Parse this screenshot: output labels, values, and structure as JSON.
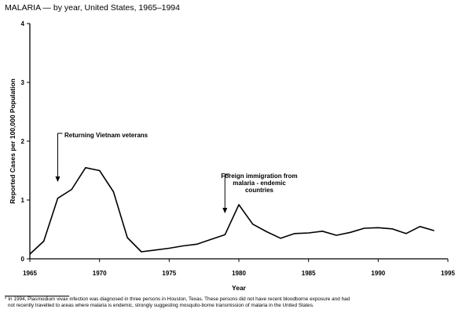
{
  "title": "MALARIA — by year, United States, 1965–1994",
  "footnote": {
    "marker": "*",
    "line1": "In 1994, Plasmodium vivax infection was diagnosed in three persons in Houston, Texas. These persons did not have recent bloodborne exposure and had",
    "line2": "not recently travelled to areas where malaria is endemic, strongly suggesting mosquito-borne transmission of malaria in the United States."
  },
  "chart_data": {
    "type": "line",
    "title": "MALARIA — by year, United States, 1965–1994",
    "xlabel": "Year",
    "ylabel": "Reported Cases per 100,000 Population",
    "xlim": [
      1965,
      1995
    ],
    "ylim": [
      0,
      4
    ],
    "x_ticks": [
      1965,
      1970,
      1975,
      1980,
      1985,
      1990,
      1995
    ],
    "x_tick_labels": [
      "1965",
      "1970",
      "1975",
      "1980",
      "1985",
      "1990",
      "1995"
    ],
    "y_ticks": [
      0,
      1,
      2,
      3,
      4
    ],
    "y_tick_labels": [
      "0",
      "1",
      "2",
      "3",
      "4"
    ],
    "grid": false,
    "legend": "none",
    "series": [
      {
        "x": [
          1965,
          1966,
          1967,
          1968,
          1969,
          1970,
          1971,
          1972,
          1973,
          1974,
          1975,
          1976,
          1977,
          1978,
          1979,
          1980,
          1981,
          1982,
          1983,
          1984,
          1985,
          1986,
          1987,
          1988,
          1989,
          1990,
          1991,
          1992,
          1993,
          1994
        ],
        "y": [
          0.08,
          0.3,
          1.03,
          1.18,
          1.55,
          1.5,
          1.14,
          0.36,
          0.12,
          0.15,
          0.18,
          0.22,
          0.25,
          0.33,
          0.41,
          0.92,
          0.59,
          0.46,
          0.35,
          0.43,
          0.44,
          0.47,
          0.4,
          0.45,
          0.52,
          0.53,
          0.51,
          0.43,
          0.55,
          0.48
        ]
      }
    ],
    "annotations": [
      {
        "lines": [
          "Returning Vietnam veterans"
        ],
        "x": 1967
      },
      {
        "lines": [
          "Foreign immigration from",
          "malaria - endemic",
          "countries"
        ],
        "x": 1979
      }
    ]
  }
}
